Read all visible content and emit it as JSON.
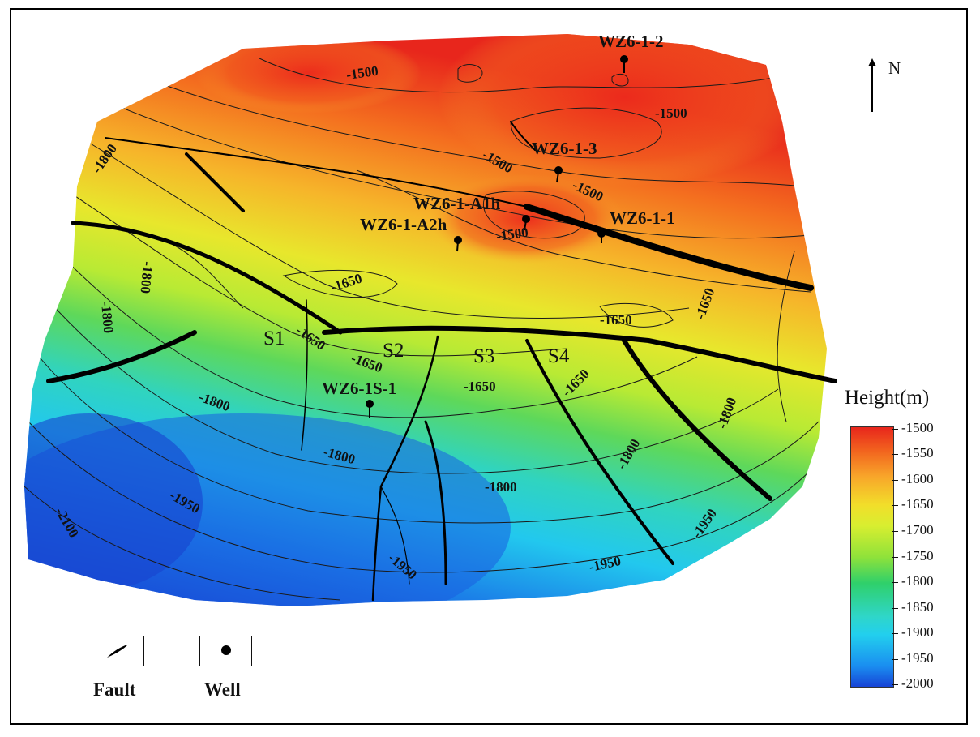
{
  "north_arrow": {
    "label": "N"
  },
  "color_scale": {
    "title": "Height(m)",
    "ticks": [
      "-1500",
      "-1550",
      "-1600",
      "-1650",
      "-1700",
      "-1750",
      "-1800",
      "-1850",
      "-1900",
      "-1950",
      "-2000"
    ],
    "colors": {
      "high": "#e8261c",
      "mid": "#d8ee30",
      "low": "#1744d6"
    }
  },
  "wells": [
    {
      "label": "WZ6-1-2"
    },
    {
      "label": "WZ6-1-3"
    },
    {
      "label": "WZ6-1-A1h"
    },
    {
      "label": "WZ6-1-A2h"
    },
    {
      "label": "WZ6-1-1"
    },
    {
      "label": "WZ6-1S-1"
    }
  ],
  "segments": [
    "S1",
    "S2",
    "S3",
    "S4"
  ],
  "contour_labels": [
    "-1500",
    "-1500",
    "-1500",
    "-1500",
    "-1500",
    "-1800",
    "-1800",
    "-1800",
    "-1650",
    "-1650",
    "-1650",
    "-1650",
    "-1650",
    "-1650",
    "-1650",
    "-1800",
    "-1800",
    "-1800",
    "-1800",
    "-1800",
    "-1950",
    "-1950",
    "-1950",
    "-1950",
    "-2100"
  ],
  "legend": {
    "fault_label": "Fault",
    "well_label": "Well"
  }
}
